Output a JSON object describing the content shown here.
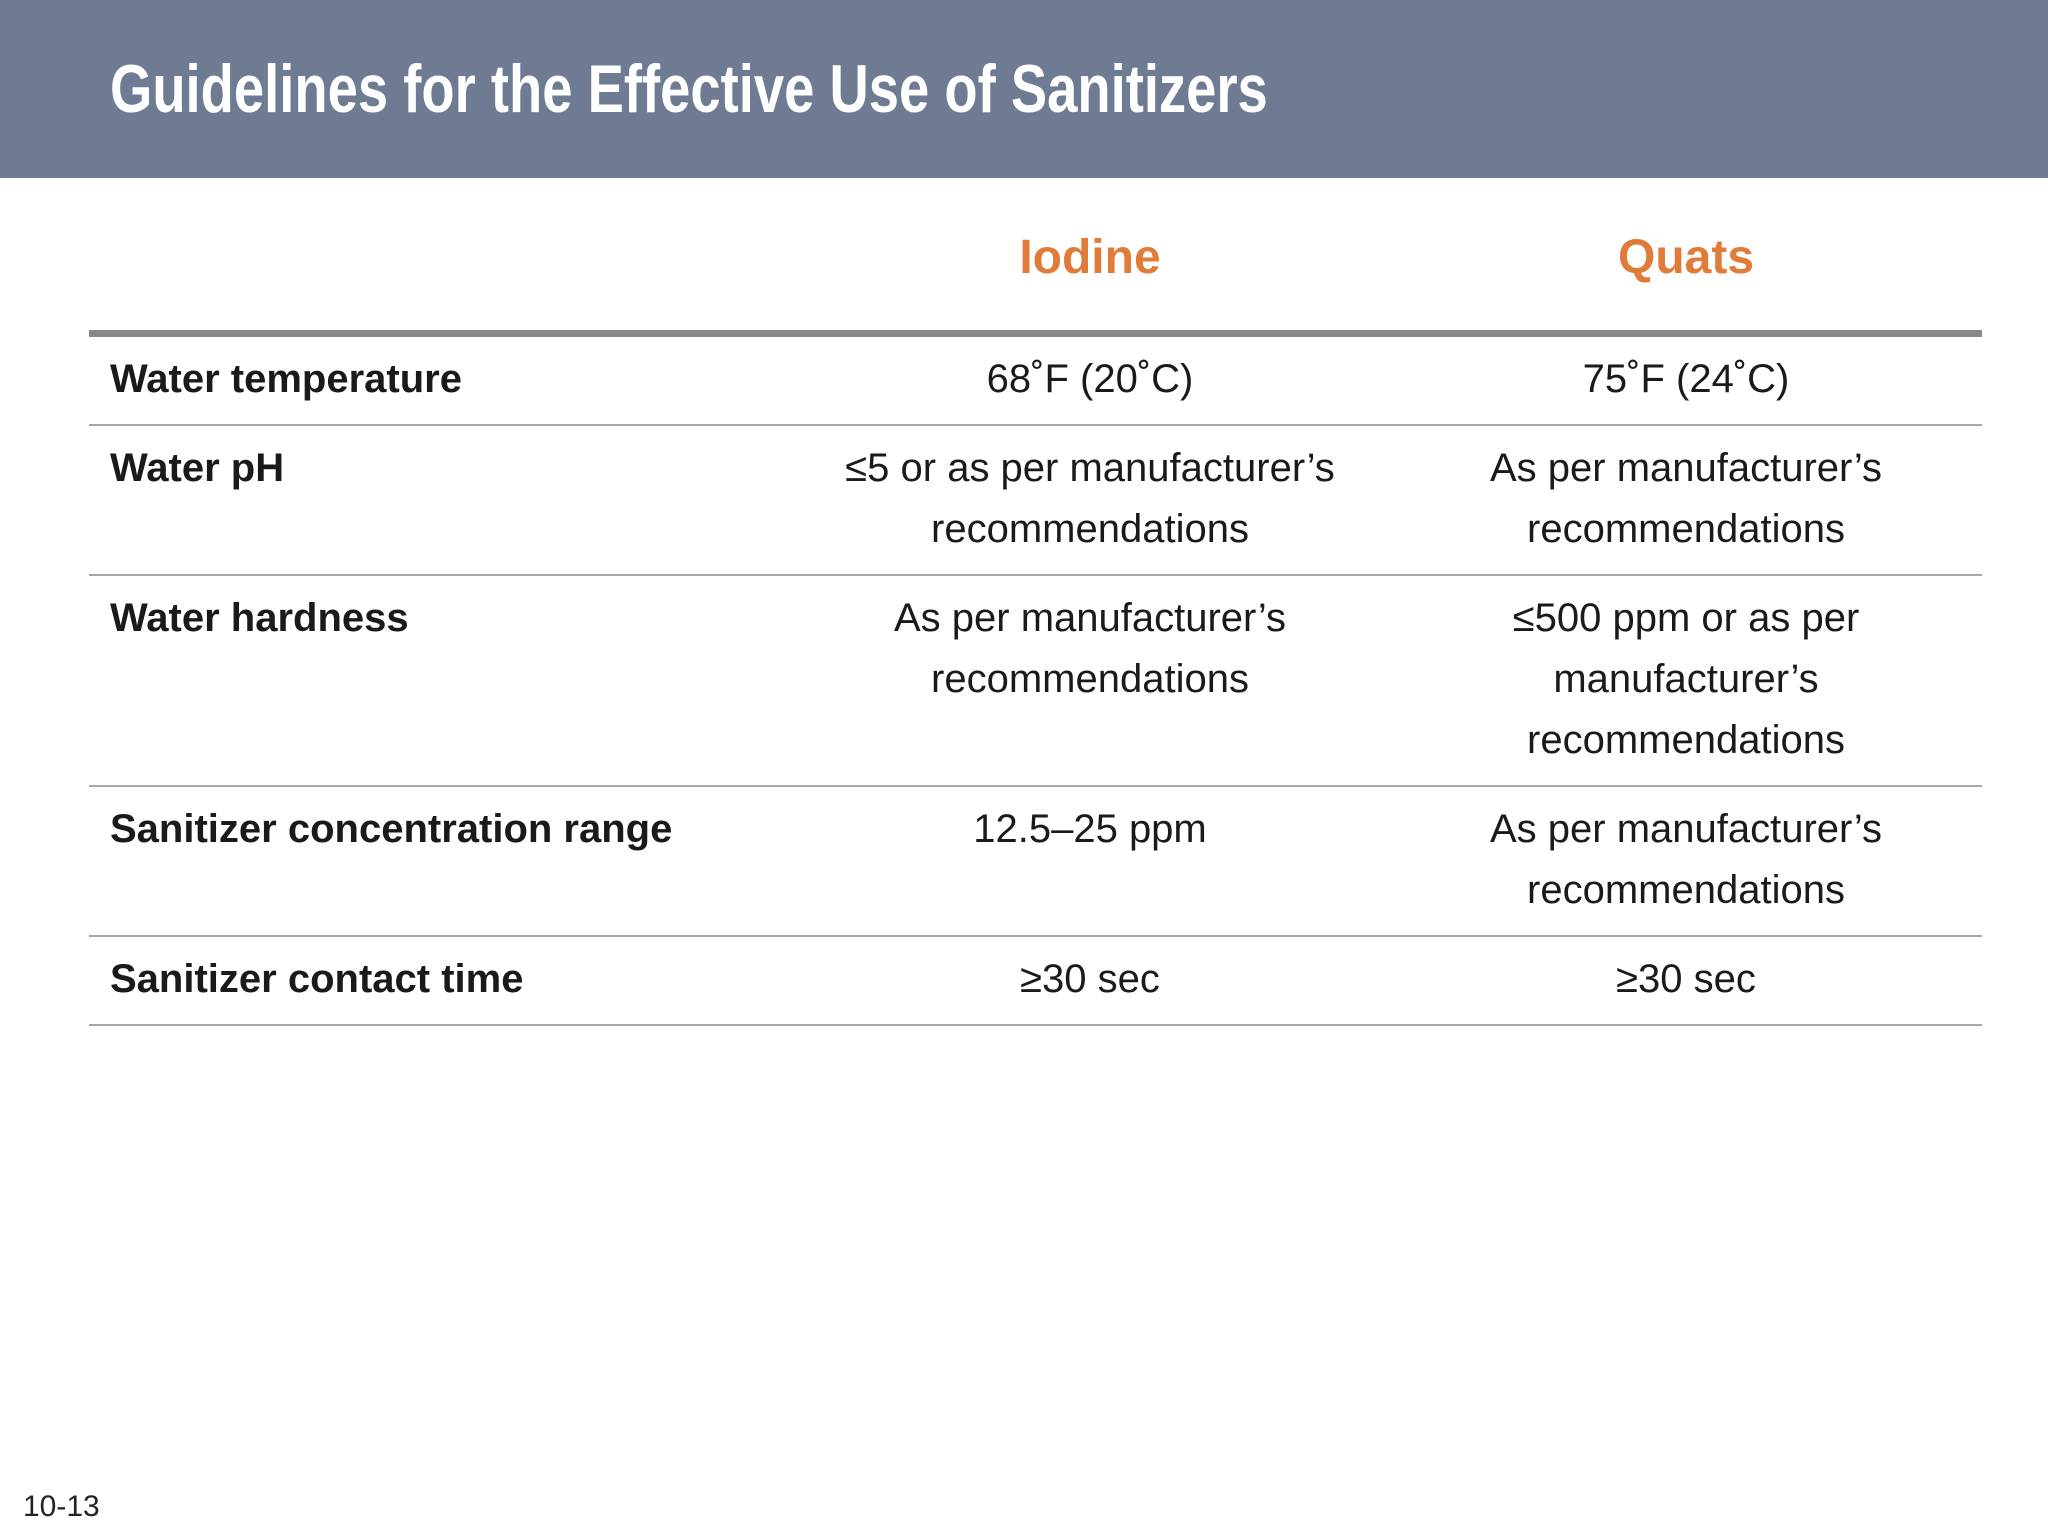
{
  "header": {
    "title": "Guidelines for the Effective Use of Sanitizers"
  },
  "table": {
    "columns": [
      "Iodine",
      "Quats"
    ],
    "rows": [
      [
        "Water temperature",
        "68˚F (20˚C)",
        "75˚F (24˚C)"
      ],
      [
        "Water pH",
        "≤5 or as per manufacturer’s recommendations",
        "As per manufacturer’s recommendations"
      ],
      [
        "Water hardness",
        "As per manufacturer’s recommendations",
        "≤500 ppm or as per manufacturer’s recommendations"
      ],
      [
        "Sanitizer concentration range",
        "12.5–25 ppm",
        "As per manufacturer’s recommendations"
      ],
      [
        "Sanitizer contact time",
        "≥30 sec",
        "≥30 sec"
      ]
    ]
  },
  "footer": {
    "page_number": "10-13"
  }
}
